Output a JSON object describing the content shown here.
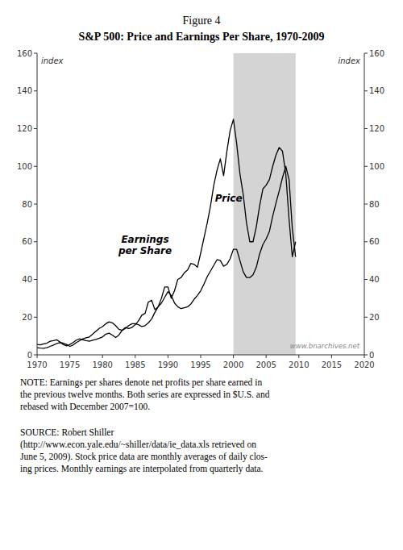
{
  "chart_data": {
    "type": "line",
    "title": "Figure 4",
    "subtitle": "S&P 500: Price and Earnings Per Share, 1970-2009",
    "ylabel": "index",
    "y2label": "index",
    "xlim": [
      1970,
      2020
    ],
    "xticks": [
      1970,
      1975,
      1980,
      1985,
      1990,
      1995,
      2000,
      2005,
      2010,
      2015,
      2020
    ],
    "ylim": [
      0,
      160
    ],
    "yticks": [
      0,
      20,
      40,
      60,
      80,
      100,
      120,
      140,
      160
    ],
    "y2lim": [
      0,
      160
    ],
    "y2ticks": [
      0,
      20,
      40,
      60,
      80,
      100,
      120,
      140,
      160
    ],
    "grid": false,
    "shaded_region": {
      "start": 2000,
      "end": 2009.5,
      "color": "#d4d4d4"
    },
    "annotations": [
      "www.bnarchives.net",
      "NOTE: Earnings per shares denote net profits per share earned in\nthe previous twelve months. Both series are expressed in $U.S. and\nrebased with December 2007=100.",
      "SOURCE: Robert Shiller\n(http://www.econ.yale.edu/~shiller/data/ie_data.xls retrieved on\nJune 5, 2009). Stock price data are monthly averages of daily clos-\ning prices. Monthly earnings are interpolated from quarterly data."
    ],
    "x": [
      1970.0,
      1970.5,
      1971.0,
      1971.5,
      1972.0,
      1972.5,
      1973.0,
      1973.5,
      1974.0,
      1974.5,
      1975.0,
      1975.5,
      1976.0,
      1976.5,
      1977.0,
      1977.5,
      1978.0,
      1978.5,
      1979.0,
      1979.5,
      1980.0,
      1980.5,
      1981.0,
      1981.5,
      1982.0,
      1982.5,
      1983.0,
      1983.5,
      1984.0,
      1984.5,
      1985.0,
      1985.5,
      1986.0,
      1986.5,
      1987.0,
      1987.5,
      1988.0,
      1988.5,
      1989.0,
      1989.5,
      1990.0,
      1990.5,
      1991.0,
      1991.5,
      1992.0,
      1992.5,
      1993.0,
      1993.5,
      1994.0,
      1994.5,
      1995.0,
      1995.5,
      1996.0,
      1996.5,
      1997.0,
      1997.5,
      1998.0,
      1998.5,
      1999.0,
      1999.5,
      2000.0,
      2000.5,
      2001.0,
      2001.5,
      2002.0,
      2002.5,
      2003.0,
      2003.5,
      2004.0,
      2004.5,
      2005.0,
      2005.5,
      2006.0,
      2006.5,
      2007.0,
      2007.5,
      2008.0,
      2008.5,
      2009.0,
      2009.5
    ],
    "series": [
      {
        "name": "Price",
        "color": "#000000",
        "values": [
          5.5,
          5.3,
          5.8,
          6.2,
          7.2,
          7.5,
          8.0,
          6.8,
          5.5,
          4.8,
          5.5,
          6.5,
          7.8,
          8.5,
          8.0,
          7.5,
          7.2,
          7.8,
          8.2,
          8.8,
          9.5,
          11.0,
          11.5,
          10.5,
          9.2,
          10.5,
          13.0,
          14.5,
          14.0,
          14.5,
          16.0,
          18.0,
          21.0,
          22.0,
          28.0,
          29.0,
          24.0,
          25.5,
          30.0,
          36.0,
          36.0,
          30.0,
          34.0,
          40.0,
          41.0,
          43.5,
          45.0,
          48.5,
          48.0,
          46.5,
          54.0,
          62.0,
          70.0,
          79.0,
          90.0,
          98.0,
          104.0,
          95.0,
          108.0,
          119.0,
          125.0,
          112.0,
          96.0,
          85.0,
          70.0,
          60.0,
          60.0,
          68.0,
          79.0,
          88.0,
          90.0,
          93.0,
          100.0,
          106.0,
          110.0,
          108.0,
          96.0,
          72.0,
          52.0,
          60.0
        ]
      },
      {
        "name": "Earnings\nper Share",
        "color": "#000000",
        "values": [
          3.8,
          3.6,
          3.5,
          3.8,
          4.5,
          5.2,
          6.0,
          6.5,
          6.2,
          5.5,
          4.5,
          5.2,
          6.5,
          7.5,
          8.5,
          9.0,
          9.5,
          11.0,
          12.5,
          14.0,
          15.0,
          16.5,
          17.5,
          17.0,
          15.5,
          13.5,
          13.0,
          14.0,
          15.5,
          16.5,
          16.5,
          16.0,
          15.0,
          15.5,
          17.0,
          19.0,
          22.5,
          25.5,
          27.5,
          30.5,
          33.5,
          31.5,
          27.5,
          25.5,
          24.5,
          25.0,
          25.5,
          27.0,
          29.5,
          31.5,
          34.0,
          37.5,
          41.5,
          44.5,
          47.5,
          50.5,
          50.0,
          47.0,
          48.0,
          51.0,
          56.0,
          56.0,
          50.0,
          44.0,
          41.0,
          41.0,
          42.5,
          46.5,
          53.5,
          58.5,
          61.5,
          65.5,
          73.5,
          80.5,
          87.0,
          94.0,
          100.0,
          93.0,
          67.0,
          52.0
        ]
      }
    ]
  }
}
